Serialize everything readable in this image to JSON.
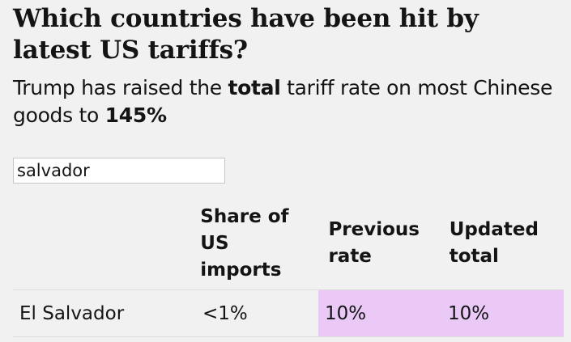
{
  "header": {
    "title": "Which countries have been hit by latest US tariffs?",
    "subtitle_pre": "Trump has raised the ",
    "subtitle_bold1": "total",
    "subtitle_mid": " tariff rate on most Chinese goods to ",
    "subtitle_bold2": "145%"
  },
  "search": {
    "value": "salvador",
    "placeholder": ""
  },
  "table": {
    "columns": [
      "",
      "Share of US imports",
      "Previous rate",
      "Updated total"
    ],
    "rows": [
      {
        "country": "El Salvador",
        "share": "<1%",
        "previous": "10%",
        "updated": "10%"
      }
    ]
  },
  "colors": {
    "background": "#f1f1f1",
    "highlight": "#eac9f7",
    "text": "#141414"
  }
}
